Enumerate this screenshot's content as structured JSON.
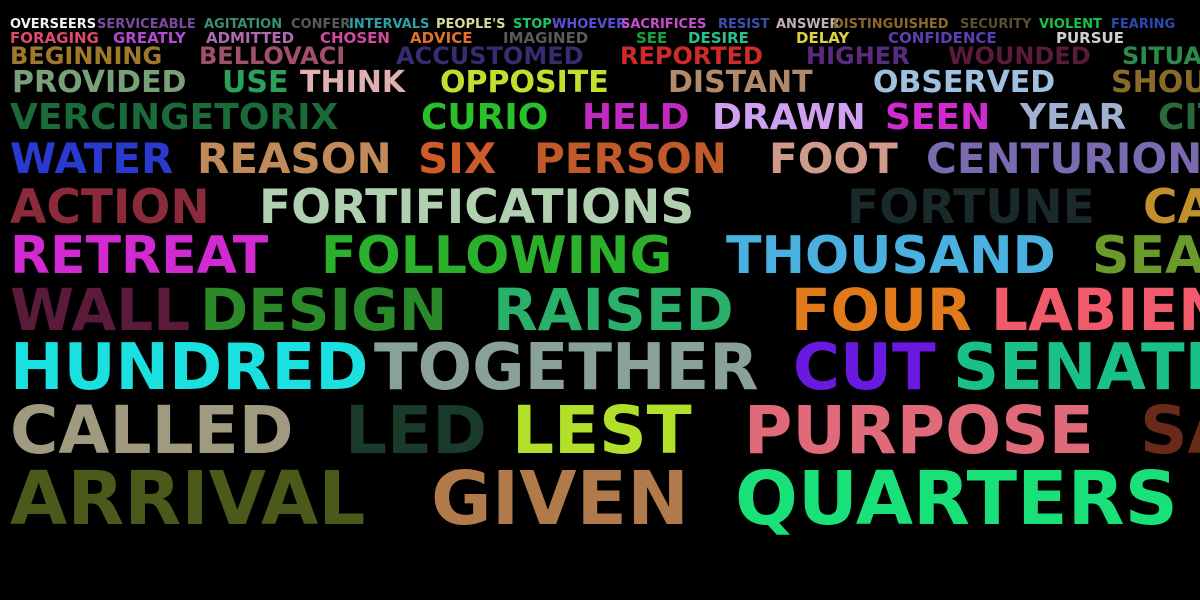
{
  "background": "#000000",
  "rows": [
    {
      "words": [
        {
          "text": "OVERSEERS",
          "color": "#f2f2f2"
        },
        {
          "text": "SERVICEABLE",
          "color": "#7a4aa0"
        },
        {
          "text": "AGITATION",
          "color": "#3b8f6e"
        },
        {
          "text": "CONFER",
          "color": "#5a5a5a"
        },
        {
          "text": "INTERVALS",
          "color": "#2f9fa8"
        },
        {
          "text": "PEOPLE'S",
          "color": "#d8d89a"
        },
        {
          "text": "STOP",
          "color": "#19c46b"
        },
        {
          "text": "WHOEVER",
          "color": "#5a4fd8"
        },
        {
          "text": "SACRIFICES",
          "color": "#c94fd0"
        },
        {
          "text": "RESIST",
          "color": "#3f4fb0"
        },
        {
          "text": "ANSWER",
          "color": "#c0b0b0"
        },
        {
          "text": "DISTINGUISHED",
          "color": "#8a6a2a"
        },
        {
          "text": "SECURITY",
          "color": "#5a5030"
        },
        {
          "text": "VIOLENT",
          "color": "#19c04a"
        },
        {
          "text": "FEARING",
          "color": "#2a4ab0"
        }
      ]
    },
    {
      "words": [
        {
          "text": "FORAGING",
          "color": "#e04a6a"
        },
        {
          "text": "GREATLY",
          "color": "#b04ad0"
        },
        {
          "text": "ADMITTED",
          "color": "#b06ab0"
        },
        {
          "text": "CHOSEN",
          "color": "#d04aa0"
        },
        {
          "text": "ADVICE",
          "color": "#e0702a"
        },
        {
          "text": "IMAGINED",
          "color": "#5a5a5a"
        },
        {
          "text": "SEE",
          "color": "#19a040"
        },
        {
          "text": "DESIRE",
          "color": "#2ac08a"
        },
        {
          "text": "DELAY",
          "color": "#e0d040"
        },
        {
          "text": "CONFIDENCE",
          "color": "#5a3fb0"
        },
        {
          "text": "PURSUE",
          "color": "#d0d0d0"
        }
      ]
    },
    {
      "words": [
        {
          "text": "BEGINNING",
          "color": "#a0782a"
        },
        {
          "text": "BELLOVACI",
          "color": "#a0506a"
        },
        {
          "text": "ACCUSTOMED",
          "color": "#3a2a70"
        },
        {
          "text": "REPORTED",
          "color": "#d02a2a"
        },
        {
          "text": "HIGHER",
          "color": "#5a2a80"
        },
        {
          "text": "WOUNDED",
          "color": "#5a1a3a"
        },
        {
          "text": "SITUATION",
          "color": "#2a8a4a"
        }
      ]
    },
    {
      "words": [
        {
          "text": "PROVIDED",
          "color": "#7aa07a"
        },
        {
          "text": "USE",
          "color": "#2aa05a"
        },
        {
          "text": "THINK",
          "color": "#e0b0b0"
        },
        {
          "text": "OPPOSITE",
          "color": "#c0e030"
        },
        {
          "text": "DISTANT",
          "color": "#b08a6a"
        },
        {
          "text": "OBSERVED",
          "color": "#a0c0e0"
        },
        {
          "text": "SHOULD",
          "color": "#8a6a2a"
        }
      ]
    },
    {
      "words": [
        {
          "text": "VERCINGETORIX",
          "color": "#1a6a3a"
        },
        {
          "text": "CURIO",
          "color": "#2ac02a"
        },
        {
          "text": "HELD",
          "color": "#c02ac0"
        },
        {
          "text": "DRAWN",
          "color": "#d0a0f0"
        },
        {
          "text": "SEEN",
          "color": "#d02ad0"
        },
        {
          "text": "YEAR",
          "color": "#a0b0d0"
        },
        {
          "text": "CITY",
          "color": "#2a6a3a"
        }
      ]
    },
    {
      "words": [
        {
          "text": "WATER",
          "color": "#2a3ad0"
        },
        {
          "text": "REASON",
          "color": "#c08a5a"
        },
        {
          "text": "SIX",
          "color": "#d05a2a"
        },
        {
          "text": "PERSON",
          "color": "#c05a2a"
        },
        {
          "text": "FOOT",
          "color": "#d09a8a"
        },
        {
          "text": "CENTURION",
          "color": "#7a6ab0"
        }
      ]
    },
    {
      "words": [
        {
          "text": "ACTION",
          "color": "#8a2a3a"
        },
        {
          "text": "FORTIFICATIONS",
          "color": "#b0d0b0"
        },
        {
          "text": "FORTUNE",
          "color": "#1a2a2a"
        },
        {
          "text": "CAMP",
          "color": "#c0902a"
        }
      ]
    },
    {
      "words": [
        {
          "text": "RETREAT",
          "color": "#d02ad0"
        },
        {
          "text": "FOLLOWING",
          "color": "#2ab02a"
        },
        {
          "text": "THOUSAND",
          "color": "#4ab0e0"
        },
        {
          "text": "SEA",
          "color": "#6a9a2a"
        }
      ]
    },
    {
      "words": [
        {
          "text": "WALL",
          "color": "#5a1a3a"
        },
        {
          "text": "DESIGN",
          "color": "#2a8a2a"
        },
        {
          "text": "RAISED",
          "color": "#2ab06a"
        },
        {
          "text": "FOUR",
          "color": "#e07a1a"
        },
        {
          "text": "LABIENUS",
          "color": "#f05a6a"
        }
      ]
    },
    {
      "words": [
        {
          "text": "HUNDRED",
          "color": "#1ae0e0"
        },
        {
          "text": "TOGETHER",
          "color": "#8aa09a"
        },
        {
          "text": "CUT",
          "color": "#6a1ae0"
        },
        {
          "text": "SENATE",
          "color": "#1ac08a"
        }
      ]
    },
    {
      "words": [
        {
          "text": "CALLED",
          "color": "#a09a80"
        },
        {
          "text": "LED",
          "color": "#1a3a2a"
        },
        {
          "text": "LEST",
          "color": "#b0e02a"
        },
        {
          "text": "PURPOSE",
          "color": "#e06a7a"
        },
        {
          "text": "SAME",
          "color": "#6a2a1a"
        }
      ]
    },
    {
      "words": [
        {
          "text": "ARRIVAL",
          "color": "#4a5a1a"
        },
        {
          "text": "GIVEN",
          "color": "#b07a4a"
        },
        {
          "text": "QUARTERS",
          "color": "#1ae07a"
        }
      ]
    }
  ]
}
